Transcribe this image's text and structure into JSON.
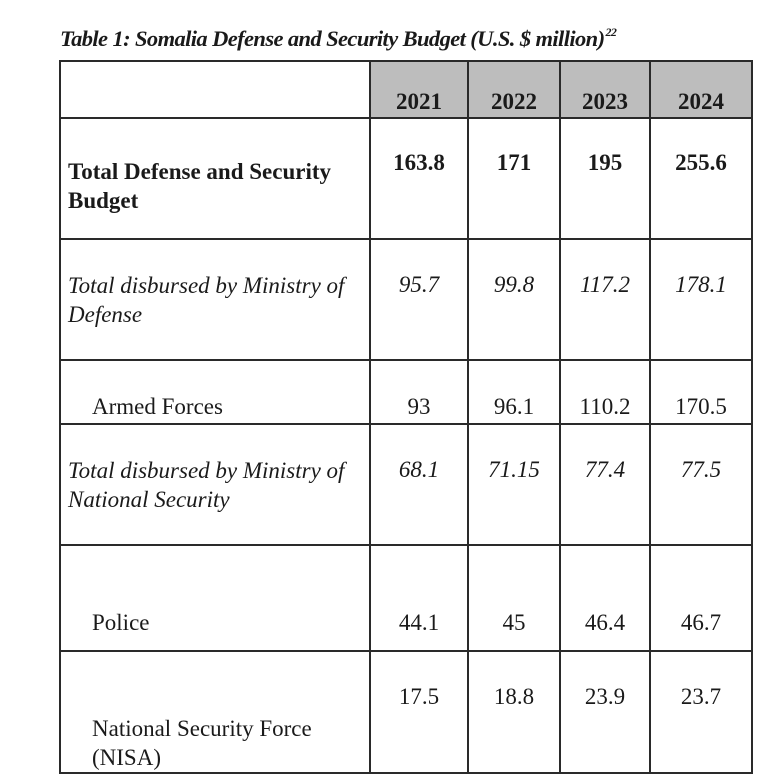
{
  "title": "Table 1: Somalia Defense and Security Budget (U.S. $ million)",
  "title_footnote": "22",
  "table": {
    "years": [
      "2021",
      "2022",
      "2023",
      "2024"
    ],
    "rows": [
      {
        "label": "Total Defense and Security Budget",
        "values": [
          "163.8",
          "171",
          "195",
          "255.6"
        ]
      },
      {
        "label": "Total disbursed by Ministry of Defense",
        "values": [
          "95.7",
          "99.8",
          "117.2",
          "178.1"
        ]
      },
      {
        "label": "Armed Forces",
        "values": [
          "93",
          "96.1",
          "110.2",
          "170.5"
        ]
      },
      {
        "label": "Total disbursed by Ministry of National Security",
        "values": [
          "68.1",
          "71.15",
          "77.4",
          "77.5"
        ]
      },
      {
        "label": "Police",
        "values": [
          "44.1",
          "45",
          "46.4",
          "46.7"
        ]
      },
      {
        "label": "National Security Force (NISA)",
        "values": [
          "17.5",
          "18.8",
          "23.9",
          "23.7"
        ]
      }
    ]
  }
}
